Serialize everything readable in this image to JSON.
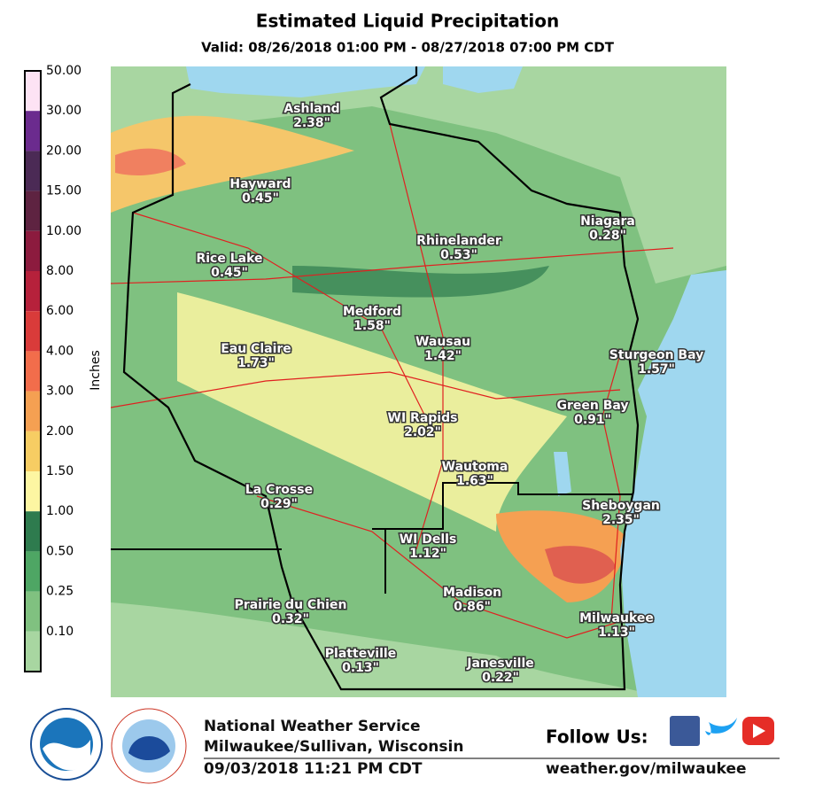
{
  "header": {
    "title": "Estimated Liquid Precipitation",
    "subtitle": "Valid: 08/26/2018 01:00 PM - 08/27/2018 07:00 PM CDT"
  },
  "legend": {
    "label": "Inches",
    "bins": [
      {
        "label": "50.00",
        "color": "#fde3f4"
      },
      {
        "label": "30.00",
        "color": "#6b2b8e"
      },
      {
        "label": "20.00",
        "color": "#4b2a55"
      },
      {
        "label": "15.00",
        "color": "#5e2341"
      },
      {
        "label": "10.00",
        "color": "#8c1b3e"
      },
      {
        "label": "8.00",
        "color": "#b6213b"
      },
      {
        "label": "6.00",
        "color": "#d93b3a"
      },
      {
        "label": "4.00",
        "color": "#f26d4b"
      },
      {
        "label": "3.00",
        "color": "#f5a052"
      },
      {
        "label": "2.00",
        "color": "#f7cd63"
      },
      {
        "label": "1.50",
        "color": "#fdf6a2"
      },
      {
        "label": "1.00",
        "color": "#2e7b4e"
      },
      {
        "label": "0.50",
        "color": "#4ea664"
      },
      {
        "label": "0.25",
        "color": "#80c180"
      },
      {
        "label": "0.10",
        "color": "#a8d6a1"
      }
    ]
  },
  "map": {
    "cities": [
      {
        "name": "Ashland",
        "value": "2.38\""
      },
      {
        "name": "Hayward",
        "value": "0.45\""
      },
      {
        "name": "Rice Lake",
        "value": "0.45\""
      },
      {
        "name": "Rhinelander",
        "value": "0.53\""
      },
      {
        "name": "Niagara",
        "value": "0.28\""
      },
      {
        "name": "Medford",
        "value": "1.58\""
      },
      {
        "name": "Wausau",
        "value": "1.42\""
      },
      {
        "name": "Eau Claire",
        "value": "1.73\""
      },
      {
        "name": "Sturgeon Bay",
        "value": "1.57\""
      },
      {
        "name": "Green Bay",
        "value": "0.91\""
      },
      {
        "name": "WI Rapids",
        "value": "2.02\""
      },
      {
        "name": "Wautoma",
        "value": "1.63\""
      },
      {
        "name": "Sheboygan",
        "value": "2.35\""
      },
      {
        "name": "La Crosse",
        "value": "0.29\""
      },
      {
        "name": "WI Dells",
        "value": "1.12\""
      },
      {
        "name": "Madison",
        "value": "0.86\""
      },
      {
        "name": "Prairie du Chien",
        "value": "0.32\""
      },
      {
        "name": "Milwaukee",
        "value": "1.13\""
      },
      {
        "name": "Platteville",
        "value": "0.13\""
      },
      {
        "name": "Janesville",
        "value": "0.22\""
      }
    ]
  },
  "footer": {
    "office": "National Weather Service",
    "location": "Milwaukee/Sullivan, Wisconsin",
    "issued": "09/03/2018 11:21 PM CDT",
    "follow": "Follow Us:",
    "url": "weather.gov/milwaukee"
  }
}
